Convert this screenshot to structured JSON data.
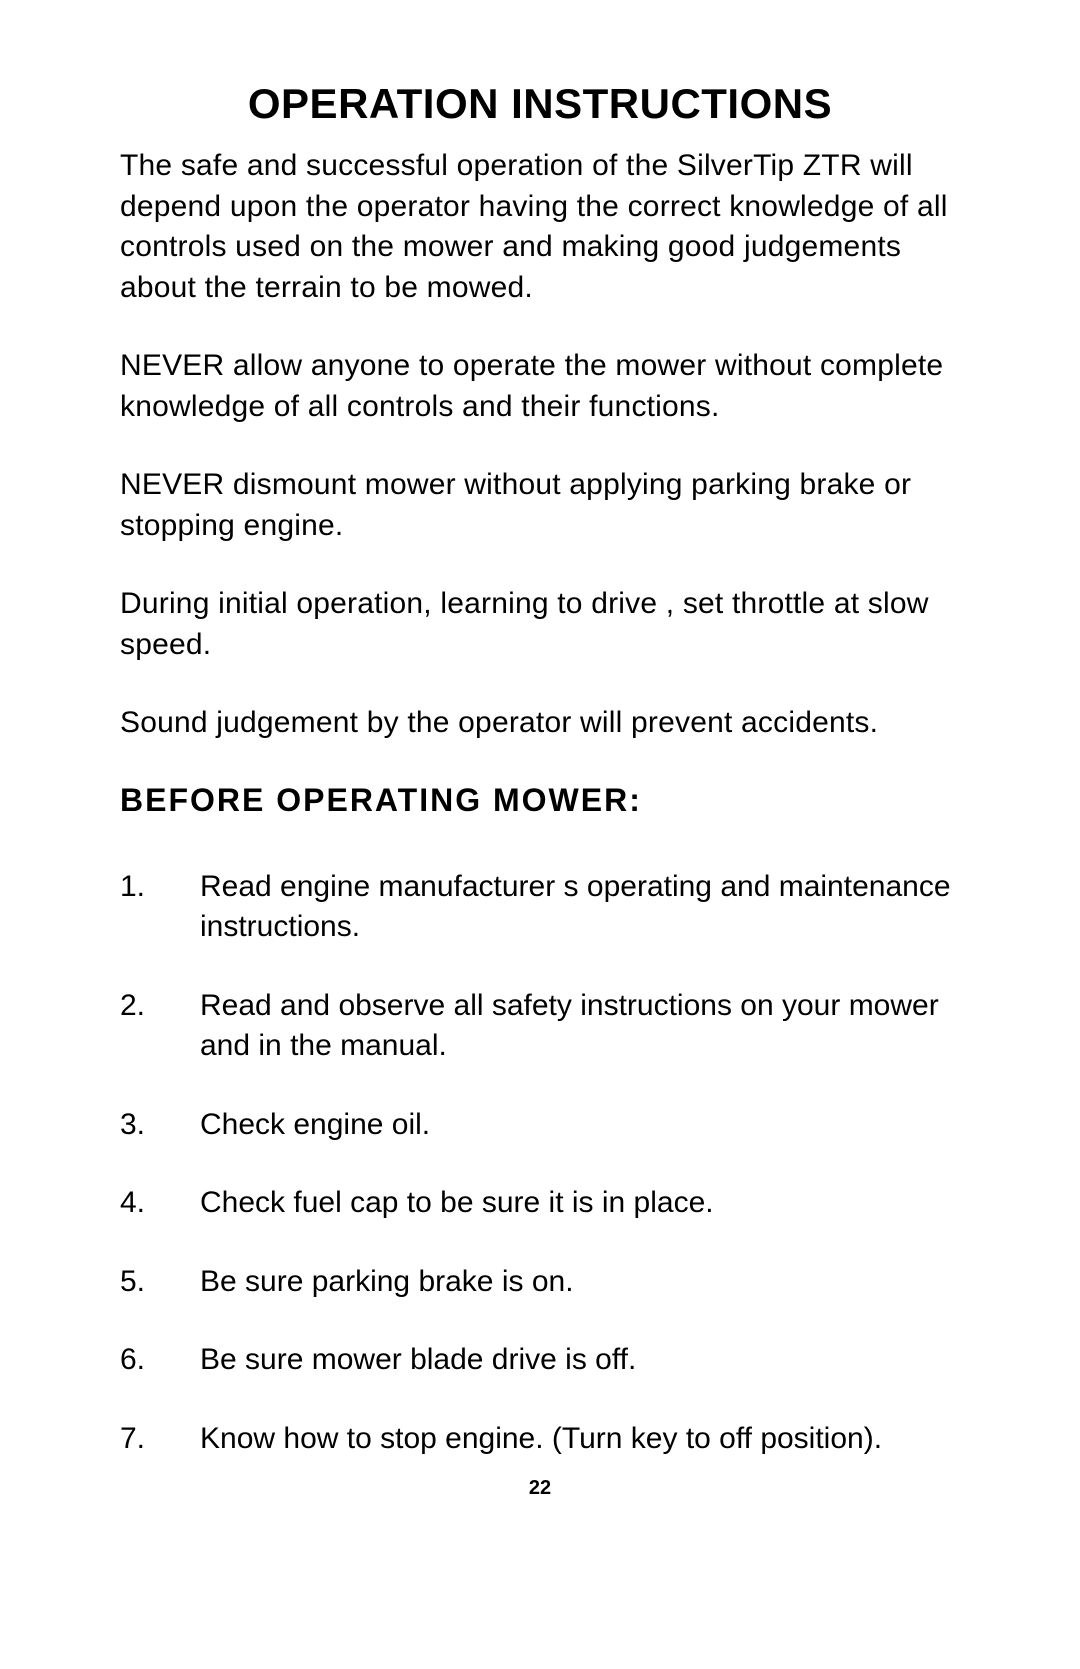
{
  "title": "OPERATION INSTRUCTIONS",
  "paragraphs": [
    "The safe and successful operation of the SilverTip ZTR  will depend upon the operator having the correct knowledge of all controls used on the mower and making good judgements about the terrain to be mowed.",
    "NEVER allow anyone to operate the mower without complete knowledge of all controls and their functions.",
    "NEVER dismount mower without applying parking brake or stopping engine.",
    "During initial operation,  learning to drive , set  throttle at slow speed.",
    "Sound judgement by the operator will prevent accidents."
  ],
  "subheading": "BEFORE OPERATING MOWER:",
  "items": [
    {
      "num": "1.",
      "text": "Read engine manufacturer s operating and maintenance instructions."
    },
    {
      "num": "2.",
      "text": "Read and observe all safety instructions on your mower and in the manual."
    },
    {
      "num": "3.",
      "text": "Check engine oil."
    },
    {
      "num": "4.",
      "text": "Check fuel cap to be sure it is in place."
    },
    {
      "num": "5.",
      "text": "Be sure parking brake is on."
    },
    {
      "num": "6.",
      "text": "Be sure mower blade drive is off."
    },
    {
      "num": "7.",
      "text": "Know how to stop engine.  (Turn key to off  position)."
    }
  ],
  "page_number": "22",
  "typography": {
    "title_fontsize": 42,
    "body_fontsize": 30,
    "subhead_fontsize": 32,
    "pagenum_fontsize": 20,
    "font_family": "Arial",
    "text_color": "#000000",
    "background_color": "#ffffff"
  }
}
